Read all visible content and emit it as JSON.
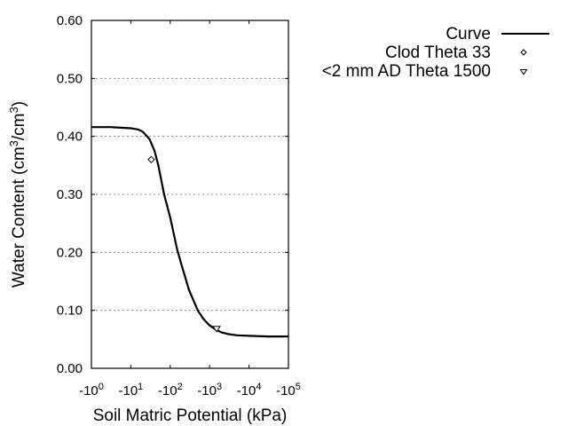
{
  "chart_data": {
    "type": "line",
    "title": "",
    "xlabel": "Soil Matric Potential (kPa)",
    "ylabel_parts": [
      "Water Content (cm",
      "3",
      "/cm",
      "3",
      ")"
    ],
    "ylabel": "Water Content (cm3/cm3)",
    "x_scale": "log (negative potentials, magnitude)",
    "xlim": [
      -1,
      -100000
    ],
    "ylim": [
      0.0,
      0.6
    ],
    "x_ticks": [
      {
        "base": "-10",
        "exp": "0",
        "value": -1
      },
      {
        "base": "-10",
        "exp": "1",
        "value": -10
      },
      {
        "base": "-10",
        "exp": "2",
        "value": -100
      },
      {
        "base": "-10",
        "exp": "3",
        "value": -1000
      },
      {
        "base": "-10",
        "exp": "4",
        "value": -10000
      },
      {
        "base": "-10",
        "exp": "5",
        "value": -100000
      }
    ],
    "y_ticks": [
      "0.00",
      "0.10",
      "0.20",
      "0.30",
      "0.40",
      "0.50",
      "0.60"
    ],
    "grid": "horizontal dotted at each y tick",
    "legend_position": "right, outside plot",
    "series": [
      {
        "name": "Curve",
        "style": "solid line",
        "x": [
          -1,
          -3,
          -10,
          -15,
          -20,
          -30,
          -40,
          -50,
          -70,
          -100,
          -150,
          -200,
          -300,
          -500,
          -700,
          -1000,
          -1500,
          -2000,
          -3000,
          -5000,
          -10000,
          -30000,
          -100000
        ],
        "y": [
          0.416,
          0.416,
          0.414,
          0.412,
          0.408,
          0.395,
          0.375,
          0.35,
          0.3,
          0.26,
          0.205,
          0.175,
          0.135,
          0.1,
          0.085,
          0.074,
          0.066,
          0.062,
          0.059,
          0.057,
          0.056,
          0.055,
          0.055
        ]
      },
      {
        "name": "Clod Theta 33",
        "style": "diamond marker",
        "x": [
          -33
        ],
        "y": [
          0.36
        ]
      },
      {
        "name": "<2 mm AD Theta 1500",
        "style": "down-triangle marker",
        "x": [
          -1500
        ],
        "y": [
          0.068
        ]
      }
    ]
  },
  "legend": {
    "items": [
      {
        "label": "Curve",
        "symbol": "line"
      },
      {
        "label": "Clod Theta 33",
        "symbol": "diamond"
      },
      {
        "label": "<2 mm AD Theta 1500",
        "symbol": "triangle-down"
      }
    ]
  }
}
